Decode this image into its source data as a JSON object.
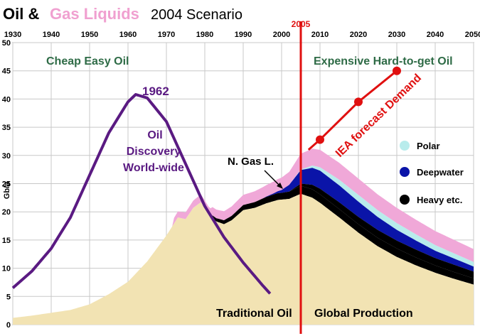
{
  "title": {
    "part1": "Oil &",
    "part2": "Gas Liquids",
    "part3": "2004 Scenario"
  },
  "colors": {
    "traditional": "#f2e3b3",
    "ngl": "#000000",
    "heavy": "#000000",
    "deepwater": "#0a14a8",
    "polar": "#b8ecec",
    "gas_liquids": "#f0a8d8",
    "discovery": "#5a1a82",
    "forecast": "#e01010",
    "grid": "#c8c8c8"
  },
  "chart_data": {
    "type": "area",
    "ylabel": "Gb/a",
    "xlim": [
      1930,
      2050
    ],
    "ylim": [
      0,
      50
    ],
    "x_ticks": [
      1930,
      1940,
      1950,
      1960,
      1970,
      1980,
      1990,
      2000,
      2005,
      2010,
      2020,
      2030,
      2040,
      2050
    ],
    "y_ticks": [
      0,
      5,
      10,
      15,
      20,
      25,
      30,
      35,
      40,
      45,
      50
    ],
    "marker_year": 2005,
    "marker_label": "2005",
    "region_labels": {
      "left": "Cheap Easy Oil",
      "right": "Expensive Hard-to-get Oil"
    },
    "traditional_oil": {
      "name": "Traditional Oil",
      "x": [
        1930,
        1935,
        1940,
        1945,
        1950,
        1955,
        1960,
        1965,
        1970,
        1973,
        1975,
        1977,
        1979,
        1981,
        1983,
        1985,
        1987,
        1990,
        1993,
        1996,
        1999,
        2002,
        2005,
        2008,
        2010,
        2015,
        2020,
        2025,
        2030,
        2035,
        2040,
        2045,
        2050
      ],
      "values": [
        1.2,
        1.6,
        2.1,
        2.6,
        3.6,
        5.4,
        7.6,
        11.2,
        15.8,
        19.0,
        18.7,
        20.7,
        21.7,
        19.4,
        18.3,
        17.8,
        18.5,
        20.3,
        20.7,
        21.5,
        22.1,
        22.3,
        23.2,
        22.5,
        21.6,
        19.0,
        16.3,
        13.9,
        12.0,
        10.5,
        9.2,
        8.1,
        7.1
      ]
    },
    "discovery": {
      "name": "Oil Discovery World-wide",
      "x": [
        1930,
        1935,
        1940,
        1945,
        1950,
        1955,
        1960,
        1962,
        1965,
        1970,
        1975,
        1980,
        1985,
        1990,
        1995,
        1997
      ],
      "values": [
        6.5,
        9.5,
        13.5,
        19.0,
        26.5,
        34.0,
        39.5,
        40.8,
        40.2,
        36.0,
        28.5,
        21.0,
        15.5,
        11.0,
        7.0,
        5.5
      ]
    },
    "production_layers": {
      "x": [
        1982,
        1985,
        1990,
        1995,
        1998,
        2000,
        2002,
        2005,
        2008,
        2010,
        2015,
        2020,
        2025,
        2030,
        2035,
        2040,
        2045,
        2050
      ],
      "ngl": [
        0.5,
        0.7,
        0.9,
        1.1,
        1.2,
        1.2,
        1.3,
        1.4,
        1.5,
        1.5,
        1.5,
        1.5,
        1.5,
        1.5,
        1.4,
        1.3,
        1.2,
        1.1
      ],
      "heavy": [
        0,
        0,
        0,
        0,
        0,
        0,
        0,
        0.4,
        0.8,
        1.0,
        1.2,
        1.3,
        1.4,
        1.4,
        1.4,
        1.3,
        1.3,
        1.2
      ],
      "deepwater": [
        0,
        0,
        0,
        0,
        0.2,
        0.5,
        1.2,
        2.4,
        3.0,
        3.2,
        3.0,
        2.7,
        2.3,
        1.9,
        1.6,
        1.3,
        1.1,
        0.9
      ],
      "polar": [
        0,
        0,
        0,
        0,
        0,
        0,
        0,
        0.1,
        0.4,
        0.6,
        1.0,
        1.2,
        1.2,
        1.2,
        1.1,
        1.0,
        0.9,
        0.8
      ],
      "gas_liquids": [
        1.5,
        1.6,
        1.8,
        2.0,
        2.1,
        2.2,
        2.3,
        2.8,
        3.0,
        3.1,
        3.0,
        2.9,
        2.8,
        2.7,
        2.6,
        2.5,
        2.4,
        2.3
      ],
      "early_gas_liquids_x": [
        1972,
        1975,
        1977,
        1979,
        1981
      ],
      "early_gas_liquids": [
        1.0,
        1.2,
        1.3,
        1.4,
        1.5
      ]
    },
    "forecast": {
      "name": "IEA forecast Demand",
      "x": [
        2007,
        2010,
        2020,
        2030
      ],
      "values": [
        31.0,
        32.8,
        39.5,
        45.0
      ]
    },
    "legend": [
      {
        "label": "Polar",
        "color_key": "polar"
      },
      {
        "label": "Deepwater",
        "color_key": "deepwater"
      },
      {
        "label": "Heavy etc.",
        "color_key": "heavy"
      }
    ],
    "annotations": {
      "peak_year": "1962",
      "discovery_label": [
        "Oil",
        "Discovery",
        "World-wide"
      ],
      "ngl_label": "N. Gas L.",
      "traditional_label": "Traditional Oil",
      "global_label": "Global Production",
      "forecast_label": "IEA forecast Demand"
    }
  }
}
